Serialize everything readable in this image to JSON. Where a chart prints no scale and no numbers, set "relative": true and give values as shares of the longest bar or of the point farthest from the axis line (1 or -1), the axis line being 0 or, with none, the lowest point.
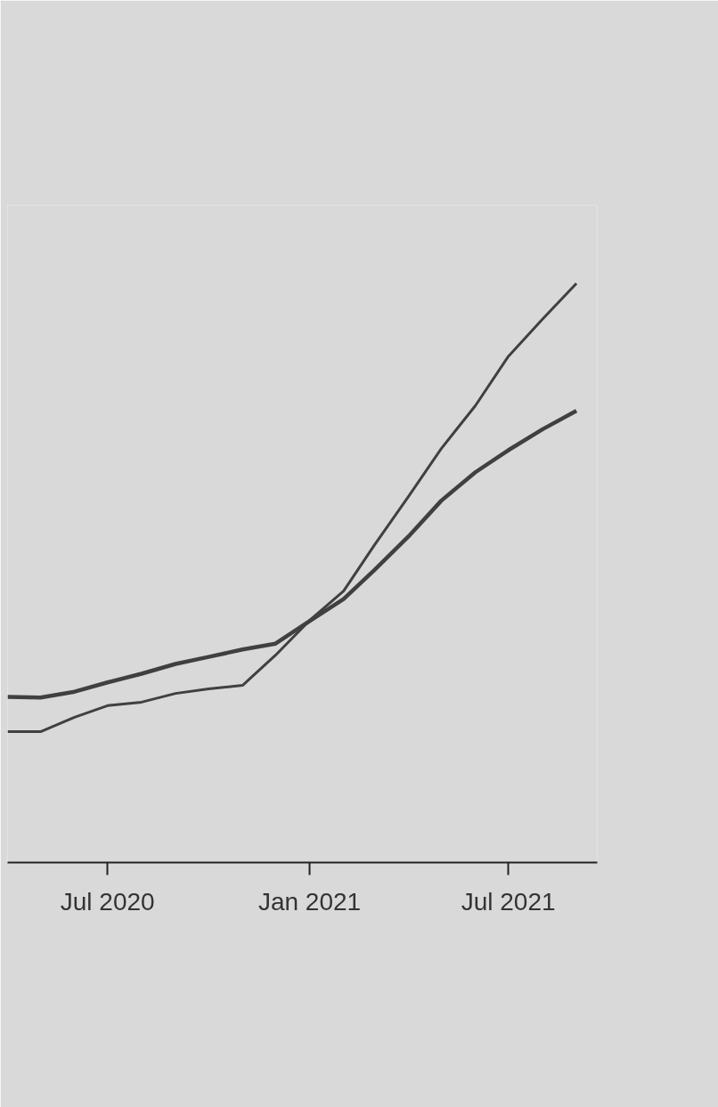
{
  "chart_data": {
    "type": "line",
    "relative": true,
    "x": [
      "2020-04-01",
      "2020-05-01",
      "2020-06-01",
      "2020-07-01",
      "2020-08-01",
      "2020-09-01",
      "2020-10-01",
      "2020-11-01",
      "2020-12-01",
      "2021-01-01",
      "2021-02-01",
      "2021-03-01",
      "2021-04-01",
      "2021-05-01",
      "2021-06-01",
      "2021-07-01",
      "2021-08-01",
      "2021-09-01"
    ],
    "xlim": [
      "2020-04-01",
      "2021-09-20"
    ],
    "xticks": [
      {
        "value": "2020-07-01",
        "label": "Jul 2020"
      },
      {
        "value": "2021-01-01",
        "label": "Jan 2021"
      },
      {
        "value": "2021-07-01",
        "label": "Jul 2021"
      }
    ],
    "series": [
      {
        "color": "#404040",
        "values": [
          0.286,
          0.285,
          0.295,
          0.311,
          0.326,
          0.343,
          0.355,
          0.368,
          0.378,
          0.417,
          0.455,
          0.505,
          0.563,
          0.625,
          0.674,
          0.712,
          0.748,
          0.78
        ]
      },
      {
        "color": "#404040",
        "values": [
          0.226,
          0.226,
          0.251,
          0.271,
          0.277,
          0.292,
          0.3,
          0.306,
          0.358,
          0.418,
          0.469,
          0.548,
          0.632,
          0.715,
          0.789,
          0.874,
          0.938,
          1
        ]
      }
    ]
  }
}
